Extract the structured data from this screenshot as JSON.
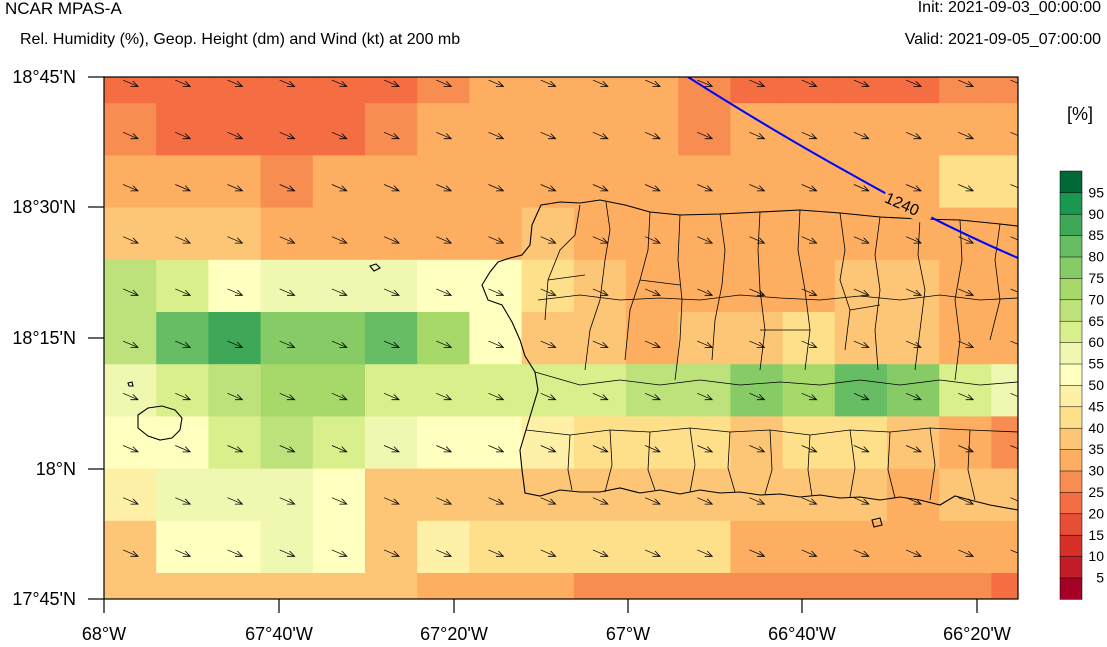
{
  "header": {
    "model": "NCAR MPAS-A",
    "subtitle": "Rel. Humidity (%), Geop. Height (dm) and Wind (kt) at 200 mb",
    "init": "Init: 2021-09-03_00:00:00",
    "valid": "Valid: 2021-09-05_07:00:00"
  },
  "axes": {
    "lat_labels": [
      "18°45'N",
      "18°30'N",
      "18°15'N",
      "18°N",
      "17°45'N"
    ],
    "lon_labels": [
      "68°W",
      "67°40'W",
      "67°20'W",
      "67°W",
      "66°40'W",
      "66°20'W"
    ]
  },
  "colorbar": {
    "unit": "[%]",
    "labels": [
      "5",
      "10",
      "15",
      "20",
      "25",
      "30",
      "35",
      "40",
      "45",
      "50",
      "55",
      "60",
      "65",
      "70",
      "75",
      "80",
      "85",
      "90",
      "95"
    ],
    "colors": [
      "#a50026",
      "#c21c27",
      "#d73027",
      "#e64e35",
      "#f46d43",
      "#f88d52",
      "#fdae61",
      "#fdc676",
      "#fee08b",
      "#fff0a8",
      "#ffffbf",
      "#eff7b0",
      "#d9ef8b",
      "#bee27b",
      "#a6d96a",
      "#86cb66",
      "#66bd63",
      "#3fa858",
      "#1a9850",
      "#006837"
    ]
  },
  "contour": {
    "label": "1240",
    "color": "#0000ff"
  },
  "chart_data": {
    "type": "heatmap",
    "title": "Rel. Humidity (%), Geop. Height (dm) and Wind (kt) at 200 mb",
    "xlabel": "",
    "ylabel": "",
    "x_range_deg_lon": [
      -68.0,
      -66.25
    ],
    "y_range_deg_lat": [
      17.75,
      18.75
    ],
    "rows_north_to_south": [
      [
        24,
        22,
        21,
        21,
        21,
        22,
        25,
        32,
        32,
        32,
        32,
        26,
        21,
        21,
        24,
        24,
        26,
        26
      ],
      [
        26,
        24,
        21,
        21,
        23,
        26,
        32,
        32,
        32,
        32,
        30,
        26,
        30,
        30,
        30,
        30,
        30,
        30
      ],
      [
        32,
        32,
        32,
        28,
        32,
        32,
        32,
        32,
        30,
        30,
        30,
        30,
        30,
        30,
        30,
        32,
        40,
        42
      ],
      [
        37,
        37,
        37,
        32,
        32,
        32,
        32,
        32,
        37,
        32,
        32,
        32,
        30,
        30,
        30,
        32,
        32,
        32
      ],
      [
        65,
        60,
        52,
        57,
        57,
        55,
        52,
        50,
        40,
        37,
        32,
        32,
        30,
        32,
        35,
        37,
        30,
        30
      ],
      [
        65,
        80,
        88,
        75,
        77,
        83,
        72,
        50,
        37,
        35,
        32,
        35,
        37,
        40,
        37,
        35,
        32,
        30
      ],
      [
        55,
        60,
        67,
        72,
        72,
        62,
        60,
        62,
        62,
        62,
        65,
        65,
        75,
        72,
        82,
        77,
        62,
        57
      ],
      [
        50,
        52,
        60,
        65,
        60,
        55,
        52,
        52,
        45,
        40,
        42,
        40,
        35,
        40,
        42,
        35,
        30,
        28
      ],
      [
        47,
        55,
        55,
        55,
        52,
        37,
        35,
        35,
        35,
        35,
        35,
        37,
        37,
        37,
        35,
        32,
        35,
        35
      ],
      [
        35,
        50,
        52,
        55,
        50,
        37,
        45,
        40,
        40,
        40,
        40,
        40,
        32,
        30,
        30,
        32,
        32,
        32
      ],
      [
        35,
        37,
        37,
        37,
        37,
        37,
        32,
        30,
        30,
        27,
        27,
        27,
        27,
        27,
        27,
        27,
        25,
        22
      ]
    ],
    "wind_direction": "west-northwest",
    "geopotential_contours_dm": [
      1240
    ]
  }
}
